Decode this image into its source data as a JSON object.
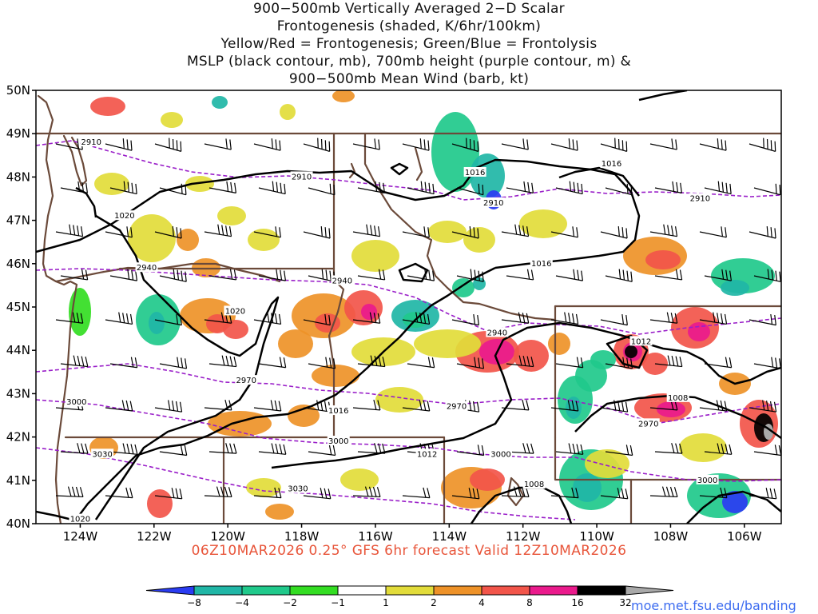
{
  "title": {
    "line1": "900−500mb Vertically Averaged 2−D Scalar",
    "line2": "Frontogenesis (shaded, K/6hr/100km)",
    "line3": "Yellow/Red = Frontogenesis;  Green/Blue = Frontolysis",
    "line4": "MSLP (black contour, mb), 700mb height (purple contour, m) &",
    "line5": "900−500mb Mean Wind (barb, kt)"
  },
  "footer": "06Z10MAR2026 0.25° GFS 6hr forecast Valid 12Z10MAR2026",
  "credit": "moe.met.fsu.edu/banding",
  "map": {
    "lon_min": -125.2,
    "lon_max": -105.0,
    "lat_min": 40,
    "lat_max": 50,
    "lat_labels": [
      "40N",
      "41N",
      "42N",
      "43N",
      "44N",
      "45N",
      "46N",
      "47N",
      "48N",
      "49N",
      "50N"
    ],
    "lon_labels": [
      "124W",
      "122W",
      "120W",
      "118W",
      "116W",
      "114W",
      "112W",
      "110W",
      "108W",
      "106W"
    ],
    "lon_ticks": [
      -124,
      -122,
      -120,
      -118,
      -116,
      -114,
      -112,
      -110,
      -108,
      -106
    ],
    "colors": {
      "mslp": "#000000",
      "height": "#9a1fc9",
      "borders": "#6b4a3a"
    }
  },
  "mslp_labels": [
    {
      "text": "1020",
      "lon": -122.8,
      "lat": 47.1
    },
    {
      "text": "1016",
      "lon": -113.3,
      "lat": 48.1
    },
    {
      "text": "1016",
      "lon": -109.6,
      "lat": 48.3
    },
    {
      "text": "1016",
      "lon": -111.5,
      "lat": 46.0
    },
    {
      "text": "1020",
      "lon": -119.8,
      "lat": 44.9
    },
    {
      "text": "1012",
      "lon": -108.8,
      "lat": 44.2
    },
    {
      "text": "1008",
      "lon": -107.8,
      "lat": 42.9
    },
    {
      "text": "1016",
      "lon": -117.0,
      "lat": 42.6
    },
    {
      "text": "1012",
      "lon": -114.6,
      "lat": 41.6
    },
    {
      "text": "1008",
      "lon": -111.7,
      "lat": 40.9
    },
    {
      "text": "1020",
      "lon": -124.0,
      "lat": 40.1
    }
  ],
  "height_labels": [
    {
      "text": "2910",
      "lon": -123.7,
      "lat": 48.8
    },
    {
      "text": "2910",
      "lon": -118.0,
      "lat": 48.0
    },
    {
      "text": "2910",
      "lon": -112.8,
      "lat": 47.4
    },
    {
      "text": "2910",
      "lon": -107.2,
      "lat": 47.5
    },
    {
      "text": "2940",
      "lon": -122.2,
      "lat": 45.9
    },
    {
      "text": "2940",
      "lon": -116.9,
      "lat": 45.6
    },
    {
      "text": "2940",
      "lon": -112.7,
      "lat": 44.4
    },
    {
      "text": "2970",
      "lon": -119.5,
      "lat": 43.3
    },
    {
      "text": "2970",
      "lon": -113.8,
      "lat": 42.7
    },
    {
      "text": "2970",
      "lon": -108.6,
      "lat": 42.3
    },
    {
      "text": "3000",
      "lon": -124.1,
      "lat": 42.8
    },
    {
      "text": "3000",
      "lon": -117.0,
      "lat": 41.9
    },
    {
      "text": "3000",
      "lon": -112.6,
      "lat": 41.6
    },
    {
      "text": "3000",
      "lon": -107.0,
      "lat": 41.0
    },
    {
      "text": "3030",
      "lon": -123.4,
      "lat": 41.6
    },
    {
      "text": "3030",
      "lon": -118.1,
      "lat": 40.8
    }
  ],
  "colorbar": {
    "labels": [
      "−8",
      "−4",
      "−2",
      "−1",
      "1",
      "2",
      "4",
      "8",
      "16",
      "32"
    ],
    "colors": [
      "#2a3cf2",
      "#20b6a6",
      "#20c98b",
      "#33dd22",
      "#ffffff",
      "#e2dc3a",
      "#ee9228",
      "#f2554a",
      "#ea1a8c",
      "#000000",
      "#a9a9a9"
    ]
  }
}
